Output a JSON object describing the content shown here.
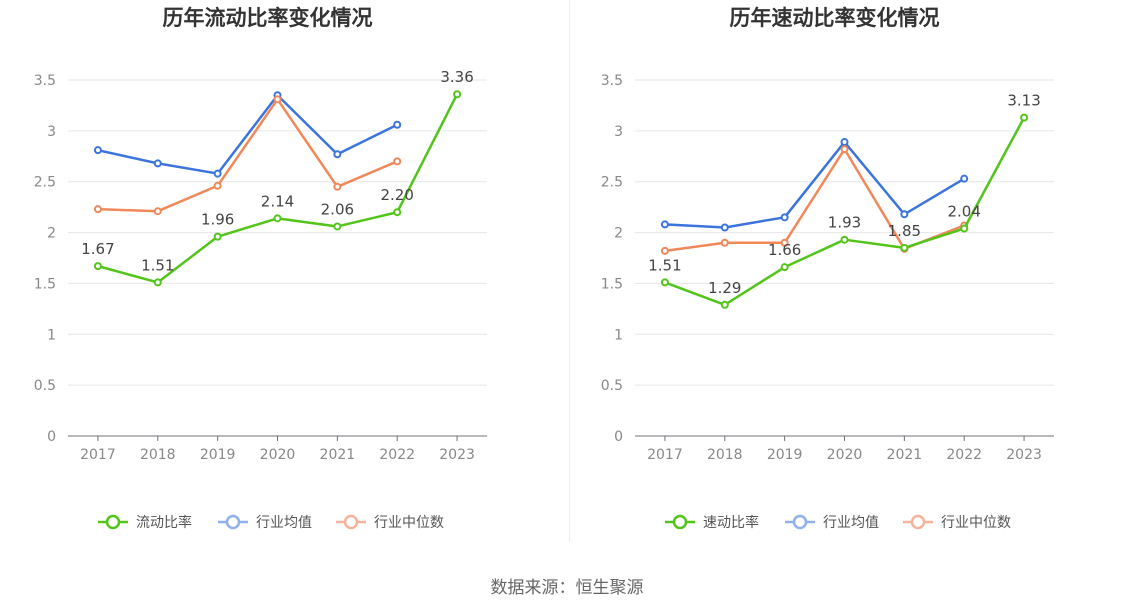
{
  "chart_data": [
    {
      "type": "line",
      "title": "历年流动比率变化情况",
      "categories": [
        "2017",
        "2018",
        "2019",
        "2020",
        "2021",
        "2022",
        "2023"
      ],
      "ylim": [
        0,
        3.5
      ],
      "yticks": [
        "0",
        "0.5",
        "1",
        "1.5",
        "2",
        "2.5",
        "3",
        "3.5"
      ],
      "grid": true,
      "legend_position": "bottom",
      "series": [
        {
          "name": "流动比率",
          "color": "#52c41a",
          "values": [
            1.67,
            1.51,
            1.96,
            2.14,
            2.06,
            2.2,
            3.36
          ],
          "labels": [
            "1.67",
            "1.51",
            "1.96",
            "2.14",
            "2.06",
            "2.20",
            "3.36"
          ]
        },
        {
          "name": "行业均值",
          "color": "#3b74dc",
          "values": [
            2.81,
            2.68,
            2.58,
            3.35,
            2.77,
            3.06,
            null
          ]
        },
        {
          "name": "行业中位数",
          "color": "#f0885a",
          "values": [
            2.23,
            2.21,
            2.46,
            3.31,
            2.45,
            2.7,
            null
          ]
        }
      ]
    },
    {
      "type": "line",
      "title": "历年速动比率变化情况",
      "categories": [
        "2017",
        "2018",
        "2019",
        "2020",
        "2021",
        "2022",
        "2023"
      ],
      "ylim": [
        0,
        3.5
      ],
      "yticks": [
        "0",
        "0.5",
        "1",
        "1.5",
        "2",
        "2.5",
        "3",
        "3.5"
      ],
      "grid": true,
      "legend_position": "bottom",
      "series": [
        {
          "name": "速动比率",
          "color": "#52c41a",
          "values": [
            1.51,
            1.29,
            1.66,
            1.93,
            1.85,
            2.04,
            3.13
          ],
          "labels": [
            "1.51",
            "1.29",
            "1.66",
            "1.93",
            "1.85",
            "2.04",
            "3.13"
          ]
        },
        {
          "name": "行业均值",
          "color": "#3b74dc",
          "values": [
            2.08,
            2.05,
            2.15,
            2.89,
            2.18,
            2.53,
            null
          ]
        },
        {
          "name": "行业中位数",
          "color": "#f0885a",
          "values": [
            1.82,
            1.9,
            1.9,
            2.82,
            1.84,
            2.07,
            null
          ]
        }
      ]
    }
  ],
  "footer": {
    "source": "数据来源：恒生聚源"
  }
}
